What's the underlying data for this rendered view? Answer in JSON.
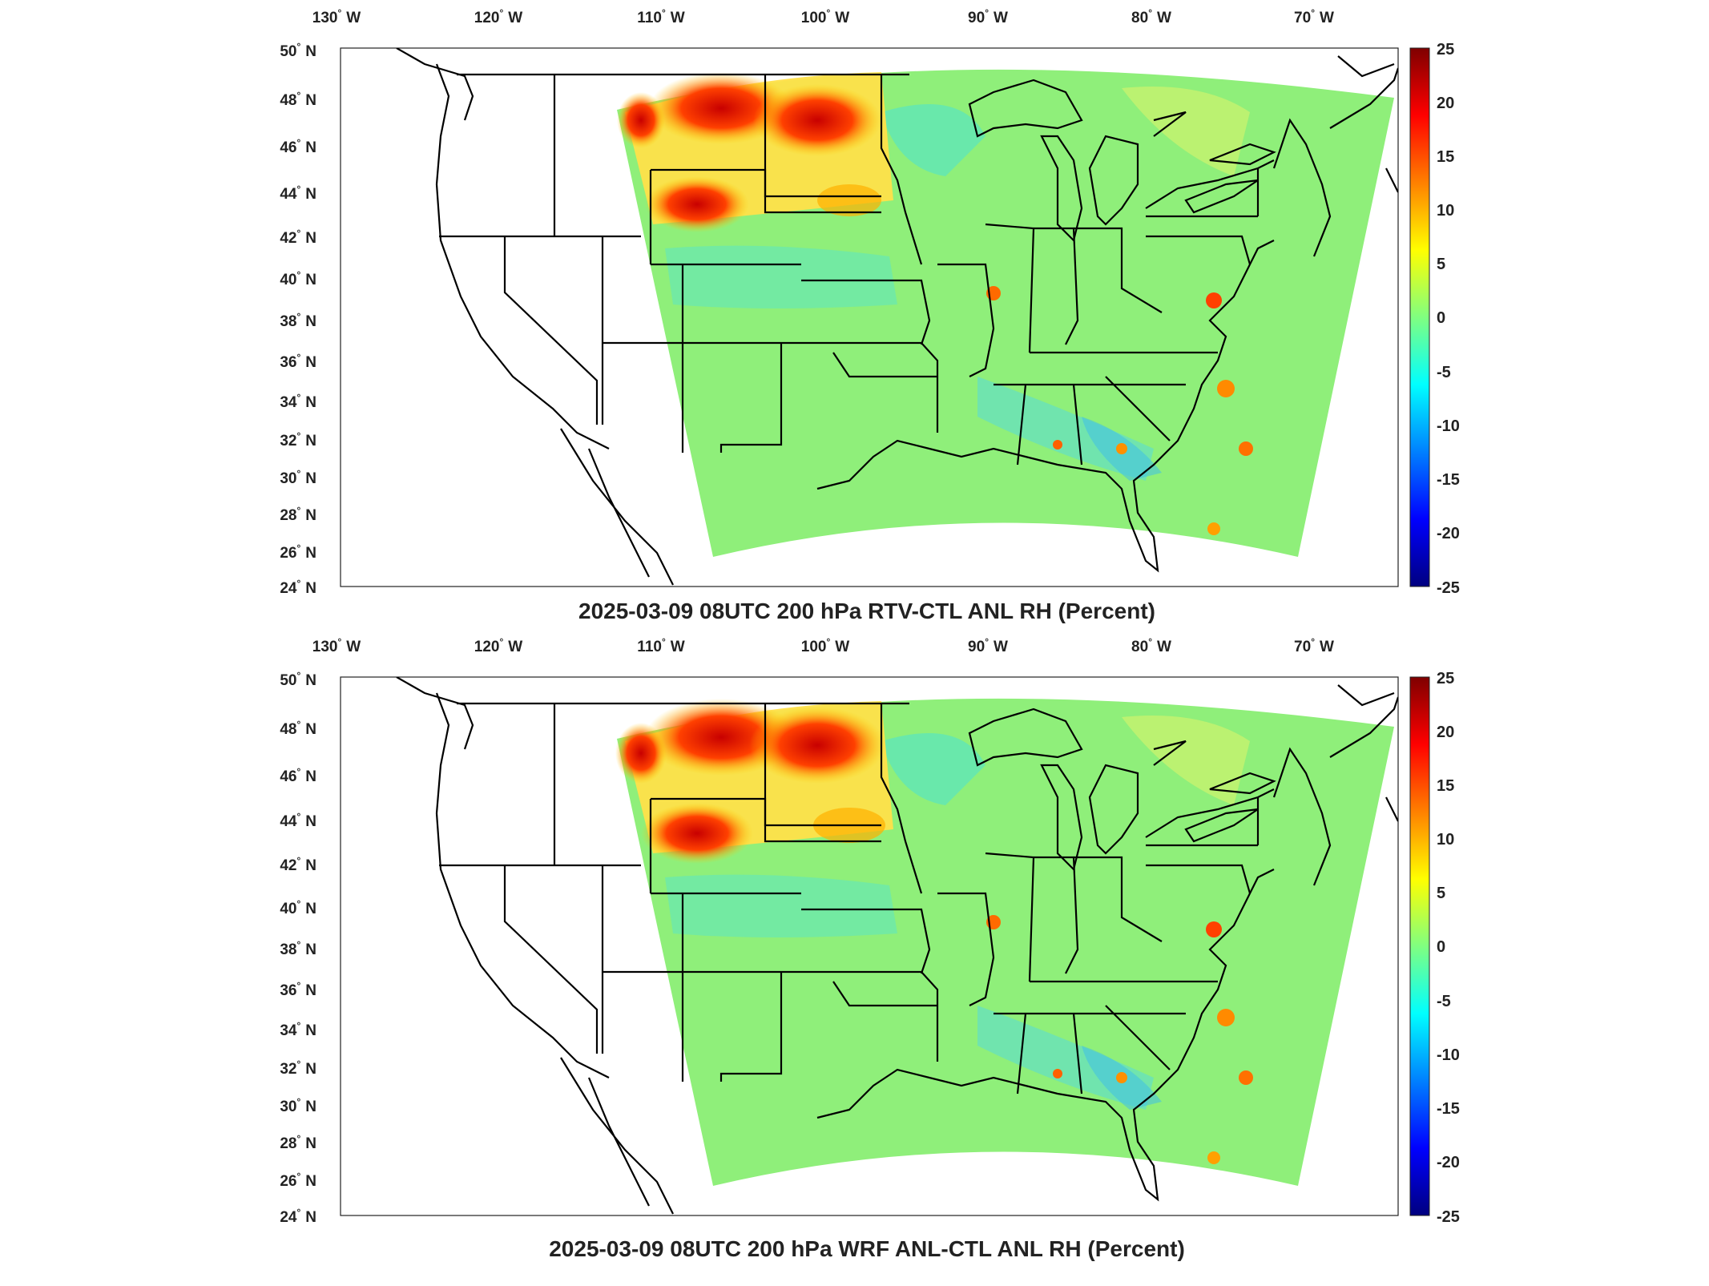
{
  "panels": [
    {
      "title": "2025-03-09 08UTC 200 hPa RTV-CTL ANL RH (Percent)",
      "lon_labels": [
        "130",
        "120",
        "110",
        "100",
        "90",
        "80",
        "70"
      ],
      "lon_unit": "W",
      "lat_labels": [
        "50",
        "48",
        "46",
        "44",
        "42",
        "40",
        "38",
        "36",
        "34",
        "32",
        "30",
        "28",
        "26",
        "24"
      ],
      "lat_unit": "N",
      "colorbar": {
        "ticks": [
          "25",
          "20",
          "15",
          "10",
          "5",
          "0",
          "-5",
          "-10",
          "-15",
          "-20",
          "-25"
        ],
        "min": -25,
        "max": 25,
        "colormap": "jet"
      }
    },
    {
      "title": "2025-03-09 08UTC 200 hPa WRF ANL-CTL ANL RH (Percent)",
      "lon_labels": [
        "130",
        "120",
        "110",
        "100",
        "90",
        "80",
        "70"
      ],
      "lon_unit": "W",
      "lat_labels": [
        "50",
        "48",
        "46",
        "44",
        "42",
        "40",
        "38",
        "36",
        "34",
        "32",
        "30",
        "28",
        "26",
        "24"
      ],
      "lat_unit": "N",
      "colorbar": {
        "ticks": [
          "25",
          "20",
          "15",
          "10",
          "5",
          "0",
          "-5",
          "-10",
          "-15",
          "-20",
          "-25"
        ],
        "min": -25,
        "max": 25,
        "colormap": "jet"
      }
    }
  ],
  "degree_symbol": "°",
  "colors": {
    "jet_stops": [
      "#00007f",
      "#0000ff",
      "#0080ff",
      "#00ffff",
      "#80ff80",
      "#ffff00",
      "#ff8000",
      "#ff0000",
      "#7f0000"
    ],
    "field_background": "#8fef7a",
    "border_lines": "#000000"
  }
}
